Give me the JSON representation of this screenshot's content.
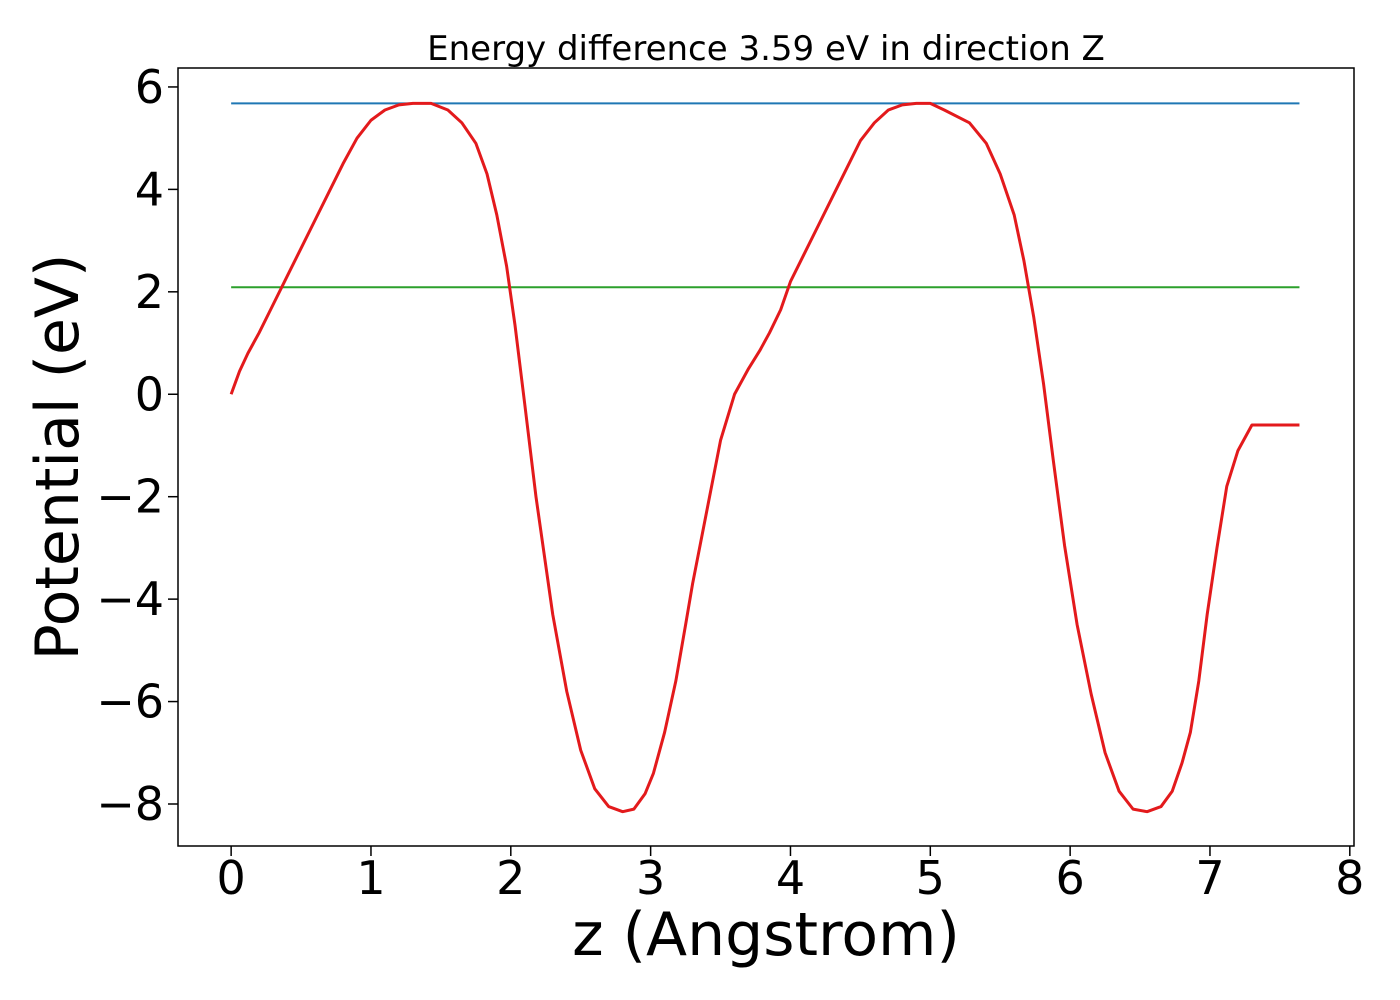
{
  "chart_data": {
    "type": "line",
    "title": "Energy difference 3.59 eV in direction Z",
    "xlabel": "z (Angstrom)",
    "ylabel": "Potential (eV)",
    "xlim": [
      -0.38,
      8.03
    ],
    "ylim": [
      -8.82,
      6.37
    ],
    "xticks": [
      0,
      1,
      2,
      3,
      4,
      5,
      6,
      7,
      8
    ],
    "xtick_labels": [
      "0",
      "1",
      "2",
      "3",
      "4",
      "5",
      "6",
      "7",
      "8"
    ],
    "yticks": [
      6,
      4,
      2,
      0,
      -2,
      -4,
      -6,
      -8
    ],
    "ytick_labels": [
      "6",
      "4",
      "2",
      "0",
      "−2",
      "−4",
      "−6",
      "−8"
    ],
    "grid": false,
    "legend": false,
    "series": [
      {
        "color": "#e31a1c",
        "x": [
          0,
          0.06,
          0.12,
          0.2,
          0.3,
          0.4,
          0.5,
          0.6,
          0.7,
          0.8,
          0.9,
          1.0,
          1.1,
          1.2,
          1.3,
          1.43,
          1.55,
          1.65,
          1.75,
          1.83,
          1.9,
          1.97,
          2.03,
          2.1,
          2.18,
          2.3,
          2.4,
          2.5,
          2.6,
          2.7,
          2.8,
          2.88,
          2.96,
          3.02,
          3.1,
          3.18,
          3.25,
          3.3,
          3.4,
          3.5,
          3.6,
          3.7,
          3.78,
          3.85,
          3.93,
          4.0,
          4.1,
          4.2,
          4.3,
          4.4,
          4.5,
          4.6,
          4.7,
          4.8,
          4.9,
          5.0,
          5.1,
          5.28,
          5.4,
          5.5,
          5.6,
          5.67,
          5.74,
          5.81,
          5.88,
          5.96,
          6.05,
          6.15,
          6.25,
          6.35,
          6.45,
          6.55,
          6.65,
          6.73,
          6.8,
          6.86,
          6.92,
          6.98,
          7.05,
          7.12,
          7.2,
          7.3,
          7.4,
          7.5,
          7.6,
          7.64
        ],
        "y": [
          0.0,
          0.45,
          0.8,
          1.2,
          1.75,
          2.3,
          2.85,
          3.4,
          3.95,
          4.5,
          5.0,
          5.35,
          5.55,
          5.65,
          5.68,
          5.68,
          5.55,
          5.3,
          4.9,
          4.3,
          3.5,
          2.5,
          1.35,
          -0.2,
          -2.0,
          -4.3,
          -5.8,
          -6.95,
          -7.7,
          -8.05,
          -8.15,
          -8.1,
          -7.8,
          -7.4,
          -6.6,
          -5.6,
          -4.5,
          -3.7,
          -2.3,
          -0.9,
          0.0,
          0.5,
          0.85,
          1.2,
          1.65,
          2.2,
          2.75,
          3.3,
          3.85,
          4.4,
          4.95,
          5.3,
          5.55,
          5.65,
          5.68,
          5.68,
          5.55,
          5.3,
          4.9,
          4.3,
          3.5,
          2.6,
          1.5,
          0.2,
          -1.3,
          -2.95,
          -4.5,
          -5.85,
          -7.0,
          -7.75,
          -8.1,
          -8.15,
          -8.05,
          -7.75,
          -7.2,
          -6.6,
          -5.6,
          -4.3,
          -3.0,
          -1.8,
          -1.1,
          -0.6,
          -0.6,
          -0.6,
          -0.6,
          -0.6
        ]
      },
      {
        "color": "#1f77b4",
        "x": [
          0,
          7.64
        ],
        "y": [
          5.68,
          5.68
        ]
      },
      {
        "color": "#2ca02c",
        "x": [
          0,
          7.64
        ],
        "y": [
          2.09,
          2.09
        ]
      }
    ]
  }
}
